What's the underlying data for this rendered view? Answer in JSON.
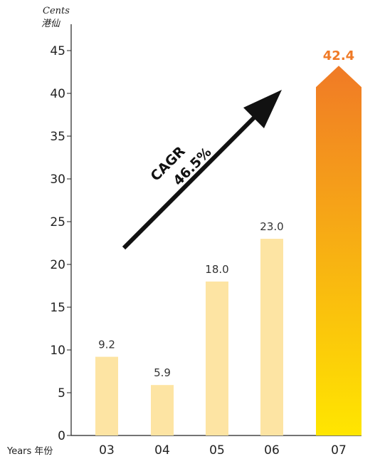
{
  "chart_data": {
    "type": "bar",
    "y_unit_en": "Cents",
    "y_unit_zh": "港仙",
    "x_axis_title": "Years 年份",
    "categories": [
      "03",
      "04",
      "05",
      "06",
      "07"
    ],
    "values": [
      9.2,
      5.9,
      18.0,
      23.0,
      42.4
    ],
    "value_labels": [
      "9.2",
      "5.9",
      "18.0",
      "23.0",
      "42.4"
    ],
    "yticks": [
      0,
      5,
      10,
      15,
      20,
      25,
      30,
      35,
      40,
      45
    ],
    "ylim": [
      0,
      45
    ],
    "grid": false,
    "highlight_index": 4,
    "annotation": {
      "line1": "CAGR",
      "line2": "46.5%"
    },
    "colors": {
      "bar": "#fde4a3",
      "highlight_top": "#f07a26",
      "highlight_bottom": "#ffe600",
      "highlight_label": "#f07a26",
      "axis": "#222222",
      "arrow": "#111111"
    }
  }
}
